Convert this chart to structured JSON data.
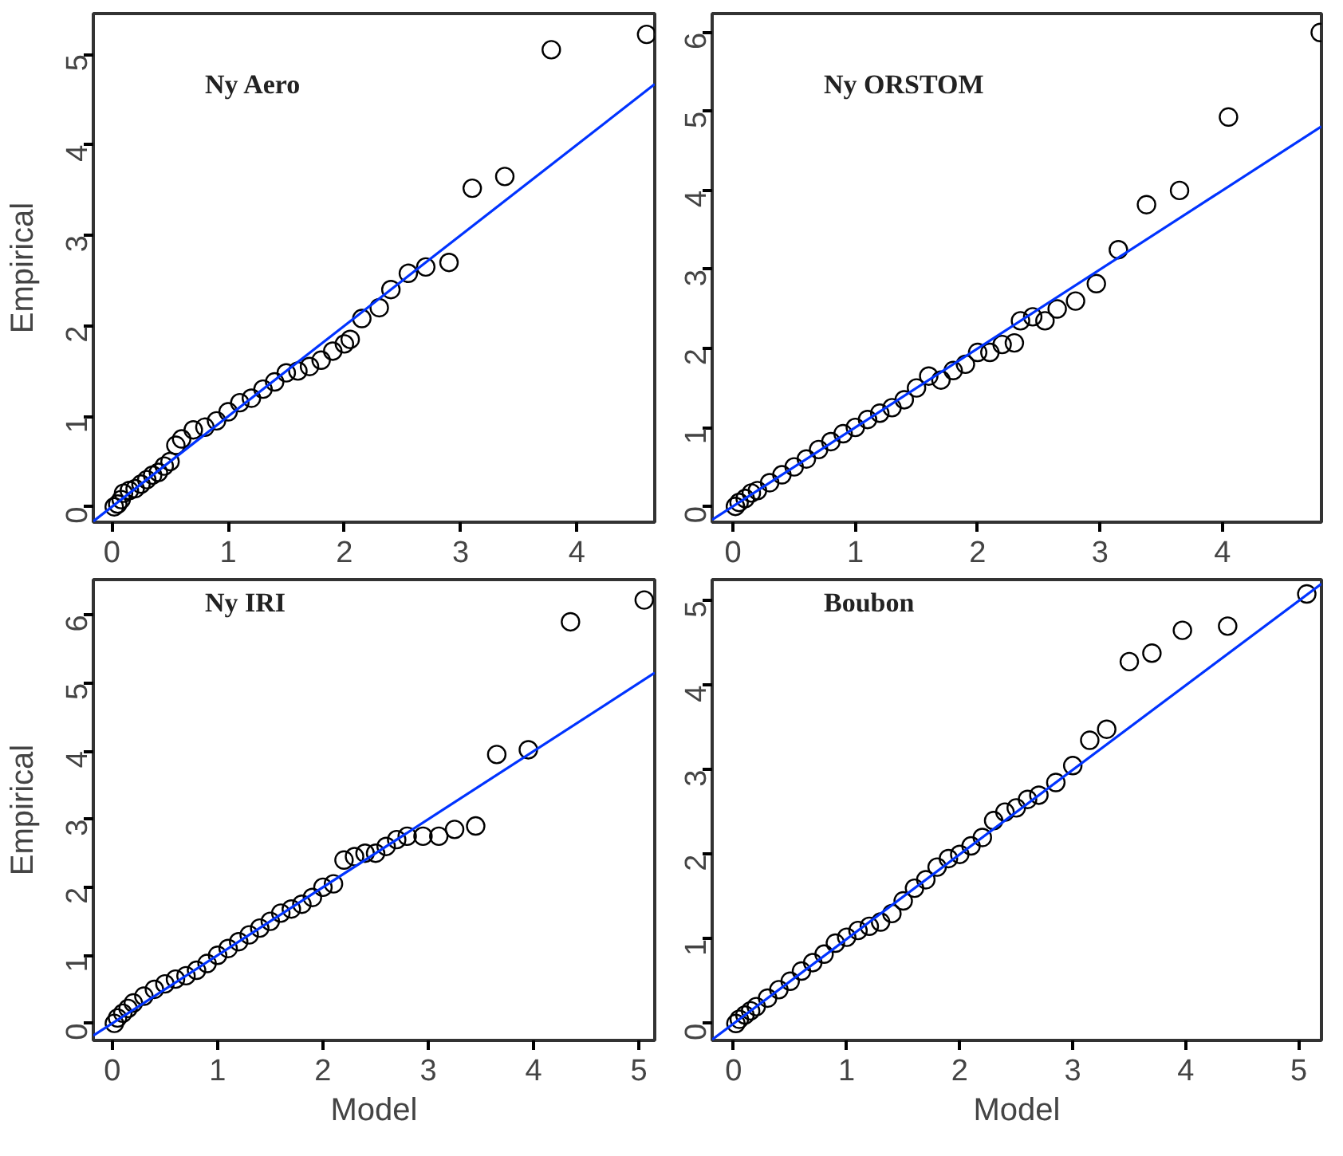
{
  "chart_data": [
    {
      "type": "scatter",
      "title": "Ny Aero",
      "ylabel": "Empirical",
      "xlim": [
        -0.16,
        4.67
      ],
      "ylim": [
        -0.17,
        5.45
      ],
      "xticks": [
        0,
        1,
        2,
        3,
        4
      ],
      "yticks": [
        0,
        1,
        2,
        3,
        4,
        5
      ],
      "grid": false,
      "series": [
        {
          "marker": "circle",
          "color": "#000000",
          "x": [
            0.02,
            0.05,
            0.08,
            0.1,
            0.15,
            0.2,
            0.25,
            0.3,
            0.35,
            0.4,
            0.45,
            0.5,
            0.55,
            0.6,
            0.7,
            0.8,
            0.9,
            1.0,
            1.1,
            1.2,
            1.3,
            1.4,
            1.5,
            1.6,
            1.7,
            1.8,
            1.9,
            2.0,
            2.05,
            2.15,
            2.3,
            2.4,
            2.55,
            2.7,
            2.9,
            3.1,
            3.38,
            3.78,
            4.6
          ],
          "values": [
            0.0,
            0.03,
            0.08,
            0.15,
            0.18,
            0.2,
            0.25,
            0.3,
            0.35,
            0.38,
            0.45,
            0.5,
            0.68,
            0.75,
            0.85,
            0.88,
            0.95,
            1.05,
            1.15,
            1.2,
            1.3,
            1.38,
            1.48,
            1.5,
            1.55,
            1.62,
            1.72,
            1.8,
            1.85,
            2.08,
            2.2,
            2.4,
            2.58,
            2.65,
            2.7,
            3.52,
            3.65,
            5.05,
            5.22
          ]
        },
        {
          "type": "line",
          "color": "#0033ff",
          "x": [
            -0.16,
            4.67
          ],
          "values": [
            -0.16,
            4.67
          ]
        }
      ]
    },
    {
      "type": "scatter",
      "title": "Ny ORSTOM",
      "xlim": [
        -0.17,
        4.81
      ],
      "ylim": [
        -0.2,
        6.24
      ],
      "xticks": [
        0,
        1,
        2,
        3,
        4
      ],
      "yticks": [
        0,
        1,
        2,
        3,
        4,
        5,
        6
      ],
      "grid": false,
      "series": [
        {
          "marker": "circle",
          "color": "#000000",
          "x": [
            0.02,
            0.05,
            0.1,
            0.15,
            0.2,
            0.3,
            0.4,
            0.5,
            0.6,
            0.7,
            0.8,
            0.9,
            1.0,
            1.1,
            1.2,
            1.3,
            1.4,
            1.5,
            1.6,
            1.7,
            1.8,
            1.9,
            2.0,
            2.1,
            2.2,
            2.3,
            2.35,
            2.45,
            2.55,
            2.65,
            2.8,
            2.97,
            3.15,
            3.38,
            3.65,
            4.05,
            4.8
          ],
          "values": [
            0.0,
            0.05,
            0.1,
            0.17,
            0.2,
            0.3,
            0.4,
            0.5,
            0.6,
            0.72,
            0.82,
            0.92,
            1.0,
            1.1,
            1.18,
            1.25,
            1.35,
            1.5,
            1.65,
            1.6,
            1.72,
            1.8,
            1.95,
            1.95,
            2.05,
            2.07,
            2.35,
            2.4,
            2.35,
            2.5,
            2.6,
            2.82,
            3.25,
            3.82,
            4.0,
            4.93,
            6.0
          ]
        },
        {
          "type": "line",
          "color": "#0033ff",
          "x": [
            -0.17,
            4.81
          ],
          "values": [
            -0.17,
            4.81
          ]
        }
      ]
    },
    {
      "type": "scatter",
      "title": "Ny IRI",
      "xlabel": "Model",
      "ylabel": "Empirical",
      "xlim": [
        -0.18,
        5.15
      ],
      "ylim": [
        -0.25,
        6.52
      ],
      "xticks": [
        0,
        1,
        2,
        3,
        4,
        5
      ],
      "yticks": [
        0,
        1,
        2,
        3,
        4,
        5,
        6
      ],
      "grid": false,
      "series": [
        {
          "marker": "circle",
          "color": "#000000",
          "x": [
            0.02,
            0.05,
            0.1,
            0.15,
            0.2,
            0.3,
            0.4,
            0.5,
            0.6,
            0.7,
            0.8,
            0.9,
            1.0,
            1.1,
            1.2,
            1.3,
            1.4,
            1.5,
            1.6,
            1.7,
            1.8,
            1.9,
            2.0,
            2.1,
            2.2,
            2.3,
            2.4,
            2.5,
            2.6,
            2.7,
            2.8,
            2.95,
            3.1,
            3.25,
            3.45,
            3.65,
            3.95,
            4.35,
            5.05
          ],
          "values": [
            0.0,
            0.08,
            0.15,
            0.22,
            0.3,
            0.4,
            0.5,
            0.58,
            0.65,
            0.7,
            0.78,
            0.88,
            1.0,
            1.1,
            1.2,
            1.3,
            1.4,
            1.5,
            1.62,
            1.68,
            1.75,
            1.85,
            2.0,
            2.05,
            2.4,
            2.45,
            2.5,
            2.5,
            2.6,
            2.7,
            2.75,
            2.75,
            2.75,
            2.85,
            2.9,
            3.95,
            4.02,
            5.9,
            6.22
          ]
        },
        {
          "type": "line",
          "color": "#0033ff",
          "x": [
            -0.18,
            5.15
          ],
          "values": [
            -0.18,
            5.15
          ]
        }
      ]
    },
    {
      "type": "scatter",
      "title": "Boubon",
      "xlabel": "Model",
      "xlim": [
        -0.19,
        5.2
      ],
      "ylim": [
        -0.2,
        5.25
      ],
      "xticks": [
        0,
        1,
        2,
        3,
        4,
        5
      ],
      "yticks": [
        0,
        1,
        2,
        3,
        4,
        5
      ],
      "grid": false,
      "series": [
        {
          "marker": "circle",
          "color": "#000000",
          "x": [
            0.02,
            0.05,
            0.1,
            0.15,
            0.2,
            0.3,
            0.4,
            0.5,
            0.6,
            0.7,
            0.8,
            0.9,
            1.0,
            1.1,
            1.2,
            1.3,
            1.4,
            1.5,
            1.6,
            1.7,
            1.8,
            1.9,
            2.0,
            2.1,
            2.2,
            2.3,
            2.4,
            2.5,
            2.6,
            2.7,
            2.85,
            3.0,
            3.15,
            3.3,
            3.5,
            3.7,
            3.97,
            4.37,
            5.07
          ],
          "values": [
            0.0,
            0.05,
            0.1,
            0.15,
            0.2,
            0.3,
            0.4,
            0.5,
            0.62,
            0.72,
            0.82,
            0.95,
            1.02,
            1.1,
            1.15,
            1.2,
            1.3,
            1.45,
            1.6,
            1.7,
            1.85,
            1.95,
            2.0,
            2.1,
            2.2,
            2.4,
            2.5,
            2.55,
            2.65,
            2.7,
            2.85,
            3.05,
            3.35,
            3.48,
            4.28,
            4.38,
            4.65,
            4.7,
            5.08
          ]
        },
        {
          "type": "line",
          "color": "#0033ff",
          "x": [
            -0.19,
            5.2
          ],
          "values": [
            -0.19,
            5.2
          ]
        }
      ]
    }
  ]
}
